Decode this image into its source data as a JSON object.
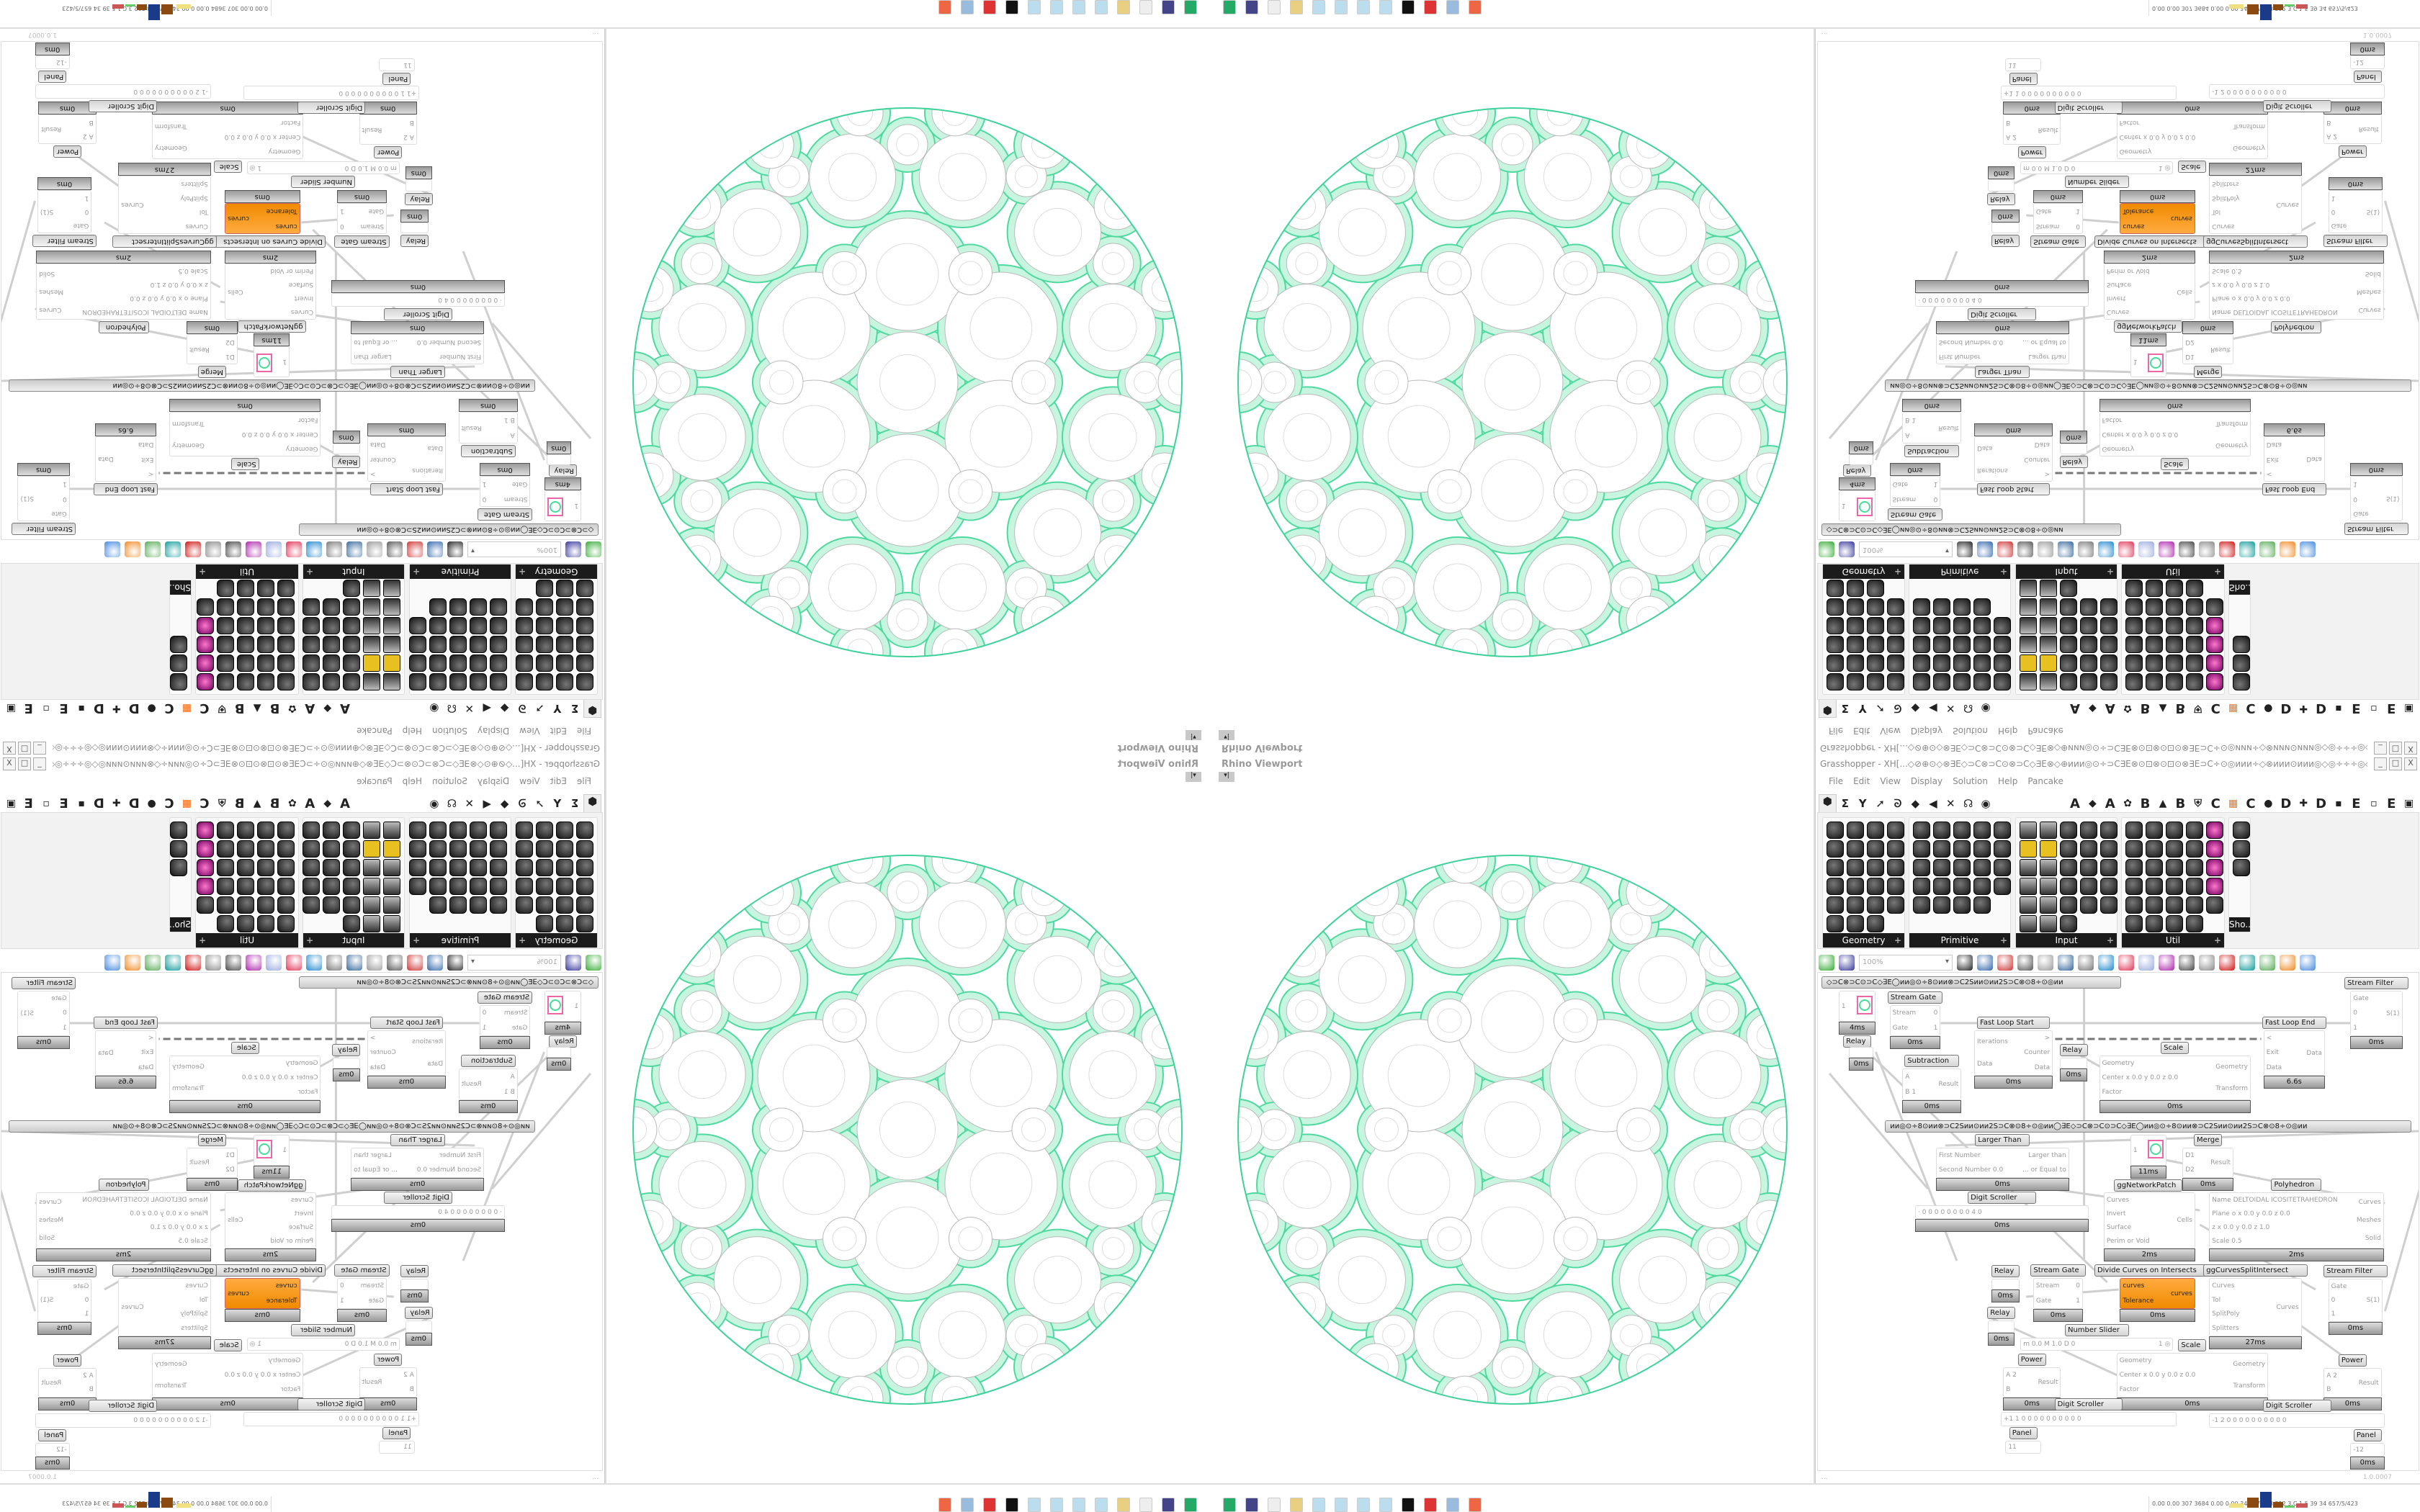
{
  "viewport": {
    "title": "Rhino Viewport",
    "dropdown": "▾|"
  },
  "grasshopper": {
    "title": "Grasshopper - XH[...◇⊘⊕⊙◇⊗∃E◇⊃C⊗⊃C⊙⊗⊃C◇∃E⊗◇⊕иии◎⊙÷⊃C∃E⊗⊙⊡⊗⊙⊡⊙⊗∃E⊃C÷⊙◎иии÷◇⊗иии⊙иии◎◇◎÷÷÷◎◇◎иии⊙",
    "window_buttons": [
      "_",
      "□",
      "X"
    ],
    "menu": [
      "File",
      "Edit",
      "View",
      "Display",
      "Solution",
      "Help",
      "Pancake"
    ],
    "tab_letters": [
      "A",
      "A",
      "B",
      "B",
      "C",
      "C",
      "D",
      "D",
      "E",
      "E"
    ],
    "panels": [
      {
        "name": "Geometry",
        "cols": 4,
        "rows": 6,
        "count": 23
      },
      {
        "name": "Primitive",
        "cols": 5,
        "rows": 6,
        "count": 24
      },
      {
        "name": "Input",
        "cols": 5,
        "rows": 6,
        "count": 28
      },
      {
        "name": "Util",
        "cols": 5,
        "rows": 6,
        "count": 29
      },
      {
        "name": "Sho...",
        "cols": 1,
        "rows": 3,
        "count": 3
      }
    ],
    "toolbar": {
      "zoom": "100%"
    },
    "status_left": "...",
    "version": "1.0.0007",
    "accent_orange": "#f29111",
    "wire_color": "#cfcfcf"
  },
  "canvas": {
    "group_bar_1": "◇⊃C⊗⊃C⊙⊃C◇∃E◯ии◎⊙÷8⊙ии⊗⊃C2Sии⊙ии2S⊃C⊗⊙8÷⊙◎ии",
    "group_bar_2": "ии◎⊙÷8⊙ии⊗⊃C2Sии⊙ии2S⊃C⊗⊙8÷⊙◎ии◯∃E◇⊃C⊗⊃C⊙⊃C◇∃E◯ии◎⊙÷8⊙ии⊗⊃C2Sии⊙ии2S⊃C⊗⊙8÷⊙◎ии",
    "nodes": [
      {
        "label": "Relay",
        "in": [
          "1"
        ],
        "out": [],
        "time": "4ms"
      },
      {
        "label": "Stream Gate",
        "in": [
          "Stream",
          "Gate"
        ],
        "out": [
          "0",
          "1"
        ],
        "time": "0ms"
      },
      {
        "label": "",
        "in": [],
        "out": [],
        "time": "0ms"
      },
      {
        "label": "Subtraction",
        "in": [
          "A",
          "B 1"
        ],
        "out": [
          "Result"
        ],
        "time": "0ms"
      },
      {
        "label": "Fast Loop Start",
        "in": [
          "Iterations",
          "Data"
        ],
        "out": [
          ">",
          "Counter",
          "Data"
        ],
        "time": "0ms"
      },
      {
        "label": "Relay",
        "in": [],
        "out": [],
        "time": "0ms"
      },
      {
        "label": "Scale",
        "in": [
          "Geometry",
          "Center x 0.0 y 0.0 z 0.0",
          "Factor"
        ],
        "out": [
          "Geometry",
          "Transform"
        ],
        "time": "0ms"
      },
      {
        "label": "Fast Loop End",
        "in": [
          "<",
          "Exit",
          "Data"
        ],
        "out": [
          "Data"
        ],
        "time": "6.6s"
      },
      {
        "label": "Stream Filter",
        "in": [
          "Gate",
          "0",
          "1"
        ],
        "out": [
          "S(1)"
        ],
        "time": "0ms"
      },
      {
        "label": "Larger Than",
        "in": [
          "First Number",
          "Second Number 0.0"
        ],
        "out": [
          "Larger than",
          "... or Equal to"
        ],
        "time": "0ms"
      },
      {
        "label": "Digit Scroller",
        "in": [
          "· 0 0 0 0 0 0 0 0 4 0"
        ],
        "out": [],
        "time": "0ms"
      },
      {
        "label": "ggNetworkPatch",
        "in": [
          "1"
        ],
        "out": [],
        "time": "11ms"
      },
      {
        "label": "Merge",
        "in": [
          "D1",
          "D2"
        ],
        "out": [
          "Result"
        ],
        "time": "0ms"
      },
      {
        "label": "",
        "in": [
          "Curves",
          "Invert",
          "Surface",
          "Perim or Void"
        ],
        "out": [
          "Cells"
        ],
        "time": "2ms"
      },
      {
        "label": "Polyhedron",
        "in": [
          "Name DELTOIDAL ICOSITETRAHEDRON",
          "Plane  o x 0.0 y 0.0 z 0.0",
          "z x 0.0 y 0.0 z 1.0",
          "Scale 0.5"
        ],
        "out": [
          "Curves",
          "Meshes",
          "Solid"
        ],
        "time": "2ms"
      },
      {
        "label": "Relay",
        "in": [],
        "out": [],
        "time": "0ms"
      },
      {
        "label": "Stream Gate",
        "in": [
          "Stream",
          "Gate"
        ],
        "out": [
          "0",
          "1"
        ],
        "time": "0ms"
      },
      {
        "label": "Relay",
        "in": [],
        "out": [],
        "time": "0ms"
      },
      {
        "label": "Divide Curves on Intersects",
        "in": [
          "curves",
          "Tolerance"
        ],
        "out": [
          "curves"
        ],
        "time": "0ms"
      },
      {
        "label": "ggCurvesSplitIntersect",
        "in": [
          "Curves",
          "Tol",
          "SplitPoly",
          "Splitters"
        ],
        "out": [
          "Curves"
        ],
        "time": "27ms"
      },
      {
        "label": "Stream Filter",
        "in": [
          "Gate",
          "0",
          "1"
        ],
        "out": [
          "S(1)"
        ],
        "time": "0ms"
      },
      {
        "label": "Number Slider",
        "in": [
          "m 0.0 M 1.0 D 0"
        ],
        "out": [
          "1 ◎"
        ],
        "time": ""
      },
      {
        "label": "Power",
        "in": [
          "A 2",
          "B"
        ],
        "out": [
          "Result"
        ],
        "time": "0ms"
      },
      {
        "label": "Scale",
        "in": [
          "Geometry",
          "Center x 0.0 y 0.0 z 0.0",
          "Factor"
        ],
        "out": [
          "Geometry",
          "Transform"
        ],
        "time": "0ms"
      },
      {
        "label": "Power",
        "in": [
          "A 2",
          "B"
        ],
        "out": [
          "Result"
        ],
        "time": "0ms"
      },
      {
        "label": "Digit Scroller",
        "in": [
          "+1 1 0 0 0 0 0 0 0 0 0 0"
        ],
        "out": [],
        "time": ""
      },
      {
        "label": "Digit Scroller",
        "in": [
          "-1 2 0 0 0 0 0 0 0 0 0 0"
        ],
        "out": [],
        "time": ""
      },
      {
        "label": "Panel",
        "in": [
          "11"
        ],
        "out": [],
        "time": ""
      },
      {
        "label": "Panel",
        "in": [
          "-12"
        ],
        "out": [],
        "time": "0ms"
      }
    ]
  },
  "taskbar": {
    "apps": [
      "rhino",
      "save",
      "blank",
      "folder",
      "notepad",
      "notepad",
      "notepad",
      "notepad",
      "inkscape",
      "acrobat",
      "calculator",
      "firefox"
    ],
    "tray_text": "0.00 0.00 307 3684 0.00 0.00 343 37 313 312 3.C 1.5 39 34 657/5/423"
  }
}
